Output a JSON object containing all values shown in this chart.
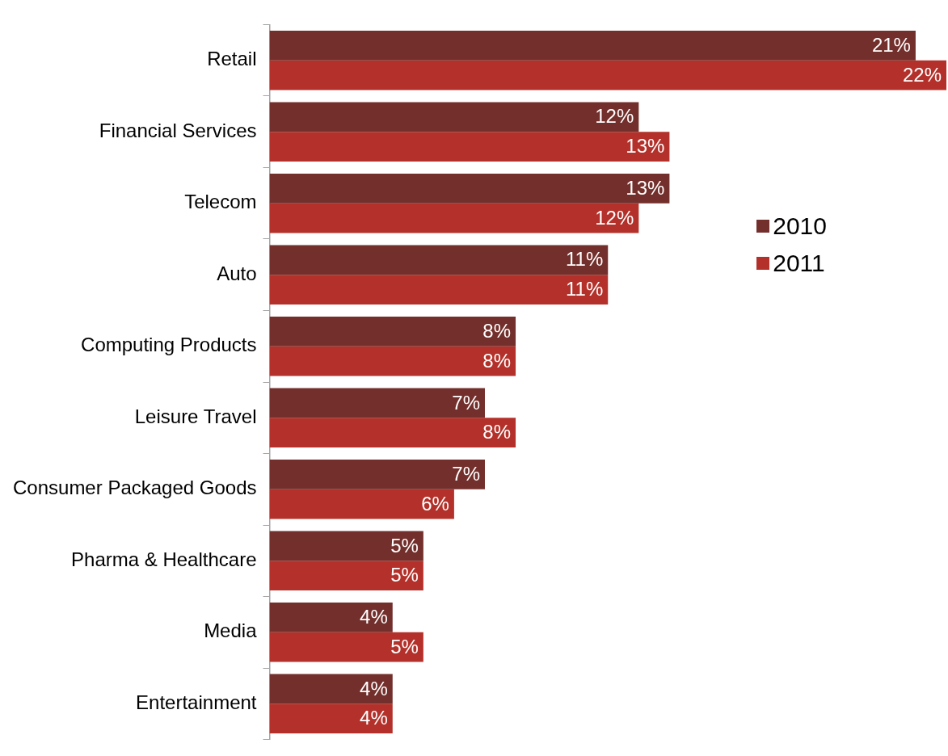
{
  "chart_data": {
    "type": "bar",
    "orientation": "horizontal",
    "categories": [
      "Retail",
      "Financial Services",
      "Telecom",
      "Auto",
      "Computing Products",
      "Leisure Travel",
      "Consumer Packaged Goods",
      "Pharma & Healthcare",
      "Media",
      "Entertainment"
    ],
    "series": [
      {
        "name": "2010",
        "color": "#722f2b",
        "values": [
          21,
          12,
          13,
          11,
          8,
          7,
          7,
          5,
          4,
          4
        ],
        "value_labels": [
          "21%",
          "12%",
          "13%",
          "11%",
          "8%",
          "7%",
          "7%",
          "5%",
          "4%",
          "4%"
        ]
      },
      {
        "name": "2011",
        "color": "#b3312a",
        "values": [
          22,
          13,
          12,
          11,
          8,
          8,
          6,
          5,
          5,
          4
        ],
        "value_labels": [
          "22%",
          "13%",
          "12%",
          "11%",
          "8%",
          "8%",
          "6%",
          "5%",
          "5%",
          "4%"
        ]
      }
    ],
    "legend": "right"
  }
}
